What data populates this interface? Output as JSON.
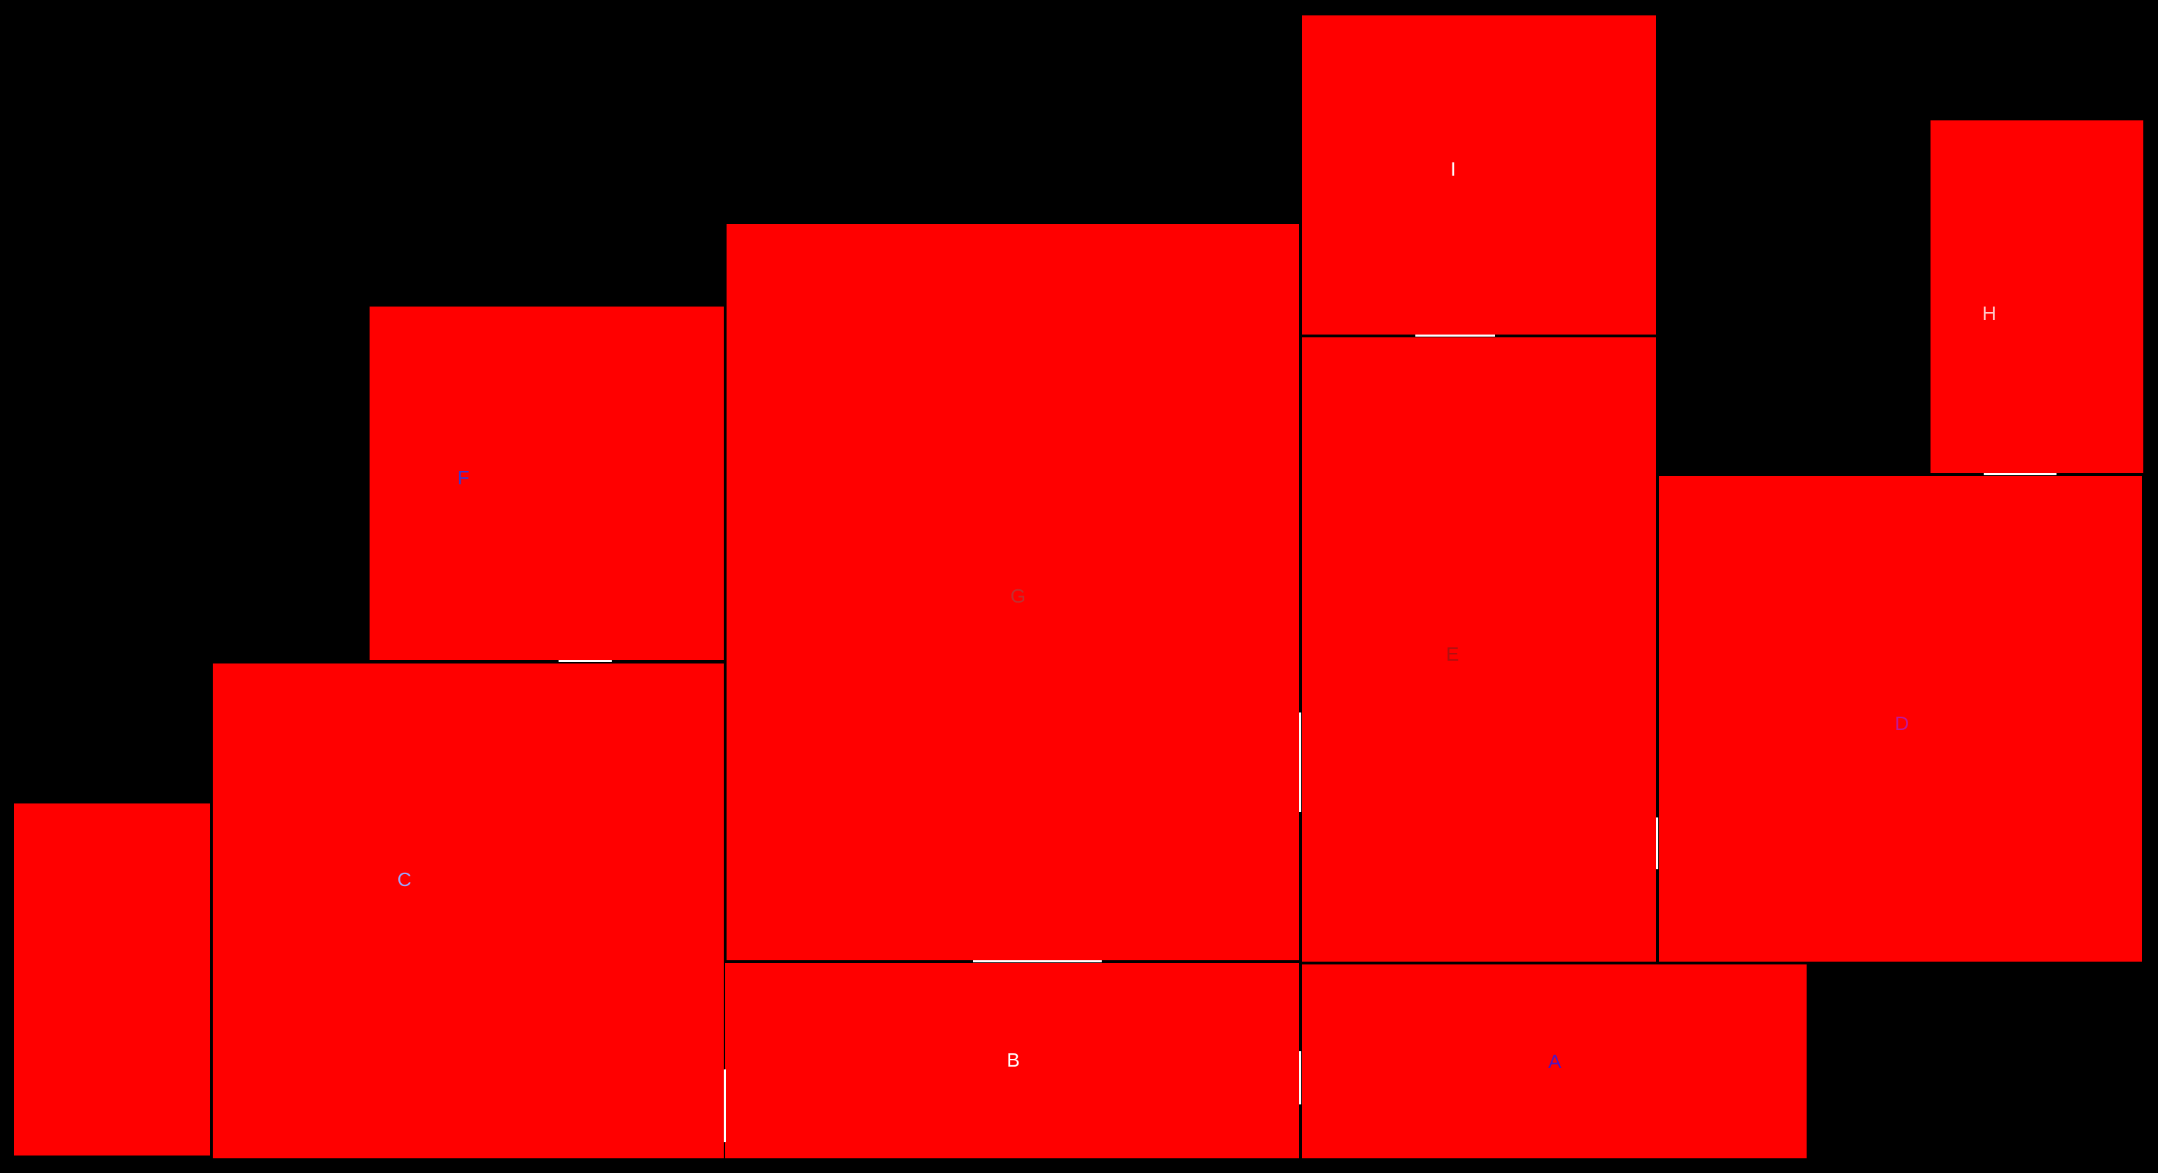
{
  "background_color": "#000000",
  "room_color": "#ff0000",
  "rooms": [
    {
      "id": "A",
      "label": "A",
      "label_color": "#4b16c4"
    },
    {
      "id": "B",
      "label": "B",
      "label_color": "#ffffff"
    },
    {
      "id": "C",
      "label": "C",
      "label_color": "#9aa7ff"
    },
    {
      "id": "D",
      "label": "D",
      "label_color": "#c01898"
    },
    {
      "id": "E",
      "label": "E",
      "label_color": "#b01010"
    },
    {
      "id": "F",
      "label": "F",
      "label_color": "#3a3ad0"
    },
    {
      "id": "G",
      "label": "G",
      "label_color": "#c03030"
    },
    {
      "id": "H",
      "label": "H",
      "label_color": "#ffc8c8"
    },
    {
      "id": "I",
      "label": "I",
      "label_color": "#ffffff"
    },
    {
      "id": "unlabeled",
      "label": "",
      "label_color": "#ff0000"
    }
  ],
  "door_color": "#ffffff"
}
